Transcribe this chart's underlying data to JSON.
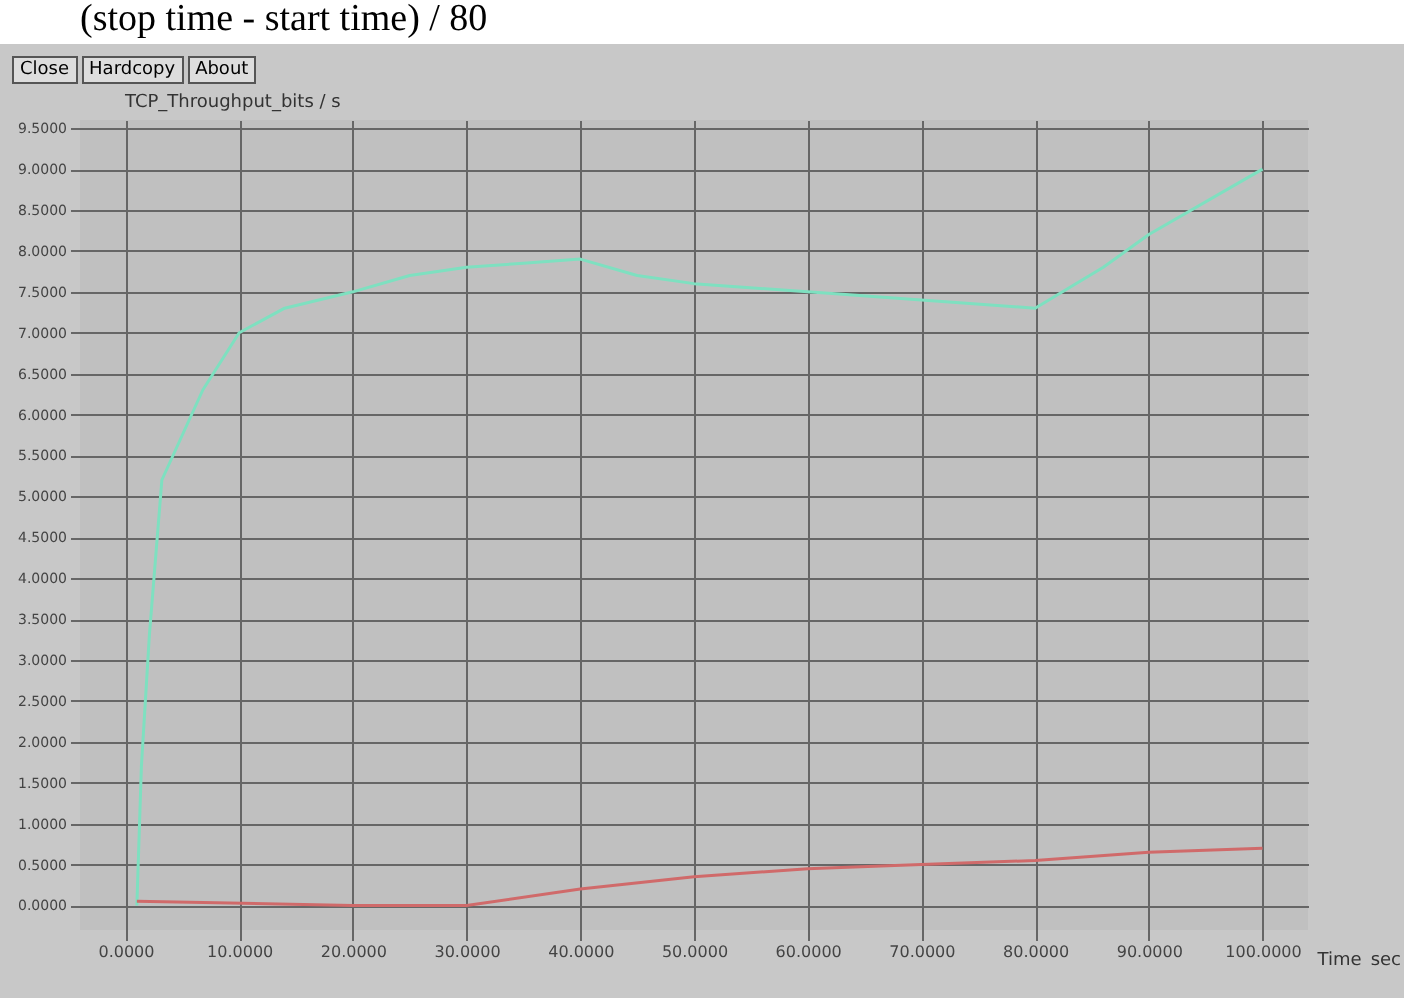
{
  "chart_data": {
    "type": "line",
    "xlabel": "Time_sec",
    "ylabel": "TCP_Throughput_bits / s",
    "annotations": [
      "(stop time - start time) / 80",
      "Close",
      "Hardcopy",
      "About"
    ],
    "xlim": [
      -4,
      104
    ],
    "ylim": [
      -0.3,
      9.6
    ],
    "xticks": [
      {
        "value": 0,
        "label": "0.0000"
      },
      {
        "value": 10,
        "label": "10.0000"
      },
      {
        "value": 20,
        "label": "20.0000"
      },
      {
        "value": 30,
        "label": "30.0000"
      },
      {
        "value": 40,
        "label": "40.0000"
      },
      {
        "value": 50,
        "label": "50.0000"
      },
      {
        "value": 60,
        "label": "60.0000"
      },
      {
        "value": 70,
        "label": "70.0000"
      },
      {
        "value": 80,
        "label": "80.0000"
      },
      {
        "value": 90,
        "label": "90.0000"
      },
      {
        "value": 100,
        "label": "100.0000"
      }
    ],
    "yticks": [
      {
        "value": 0,
        "label": "0.0000"
      },
      {
        "value": 0.5,
        "label": "0.5000"
      },
      {
        "value": 1,
        "label": "1.0000"
      },
      {
        "value": 1.5,
        "label": "1.5000"
      },
      {
        "value": 2,
        "label": "2.0000"
      },
      {
        "value": 2.5,
        "label": "2.5000"
      },
      {
        "value": 3,
        "label": "3.0000"
      },
      {
        "value": 3.5,
        "label": "3.5000"
      },
      {
        "value": 4,
        "label": "4.0000"
      },
      {
        "value": 4.5,
        "label": "4.5000"
      },
      {
        "value": 5,
        "label": "5.0000"
      },
      {
        "value": 5.5,
        "label": "5.5000"
      },
      {
        "value": 6,
        "label": "6.0000"
      },
      {
        "value": 6.5,
        "label": "6.5000"
      },
      {
        "value": 7,
        "label": "7.0000"
      },
      {
        "value": 7.5,
        "label": "7.5000"
      },
      {
        "value": 8,
        "label": "8.0000"
      },
      {
        "value": 8.5,
        "label": "8.5000"
      },
      {
        "value": 9,
        "label": "9.0000"
      },
      {
        "value": 9.5,
        "label": "9.5000"
      }
    ],
    "grid": true,
    "series": [
      {
        "color": "#7ee0c0",
        "x": [
          1,
          1.4,
          2.1,
          3.2,
          6.8,
          10,
          14,
          20,
          25,
          30,
          35,
          40,
          45,
          50,
          60,
          70,
          80,
          86,
          90,
          100
        ],
        "values": [
          0,
          1.7,
          3.3,
          5.2,
          6.3,
          7.0,
          7.3,
          7.5,
          7.7,
          7.8,
          7.85,
          7.9,
          7.7,
          7.6,
          7.5,
          7.4,
          7.3,
          7.8,
          8.2,
          9.0
        ]
      },
      {
        "color": "#d06a6a",
        "x": [
          1,
          20,
          30,
          40,
          50,
          60,
          70,
          80,
          90,
          100
        ],
        "values": [
          0.05,
          0,
          0,
          0.2,
          0.35,
          0.45,
          0.5,
          0.55,
          0.65,
          0.7
        ]
      }
    ]
  }
}
